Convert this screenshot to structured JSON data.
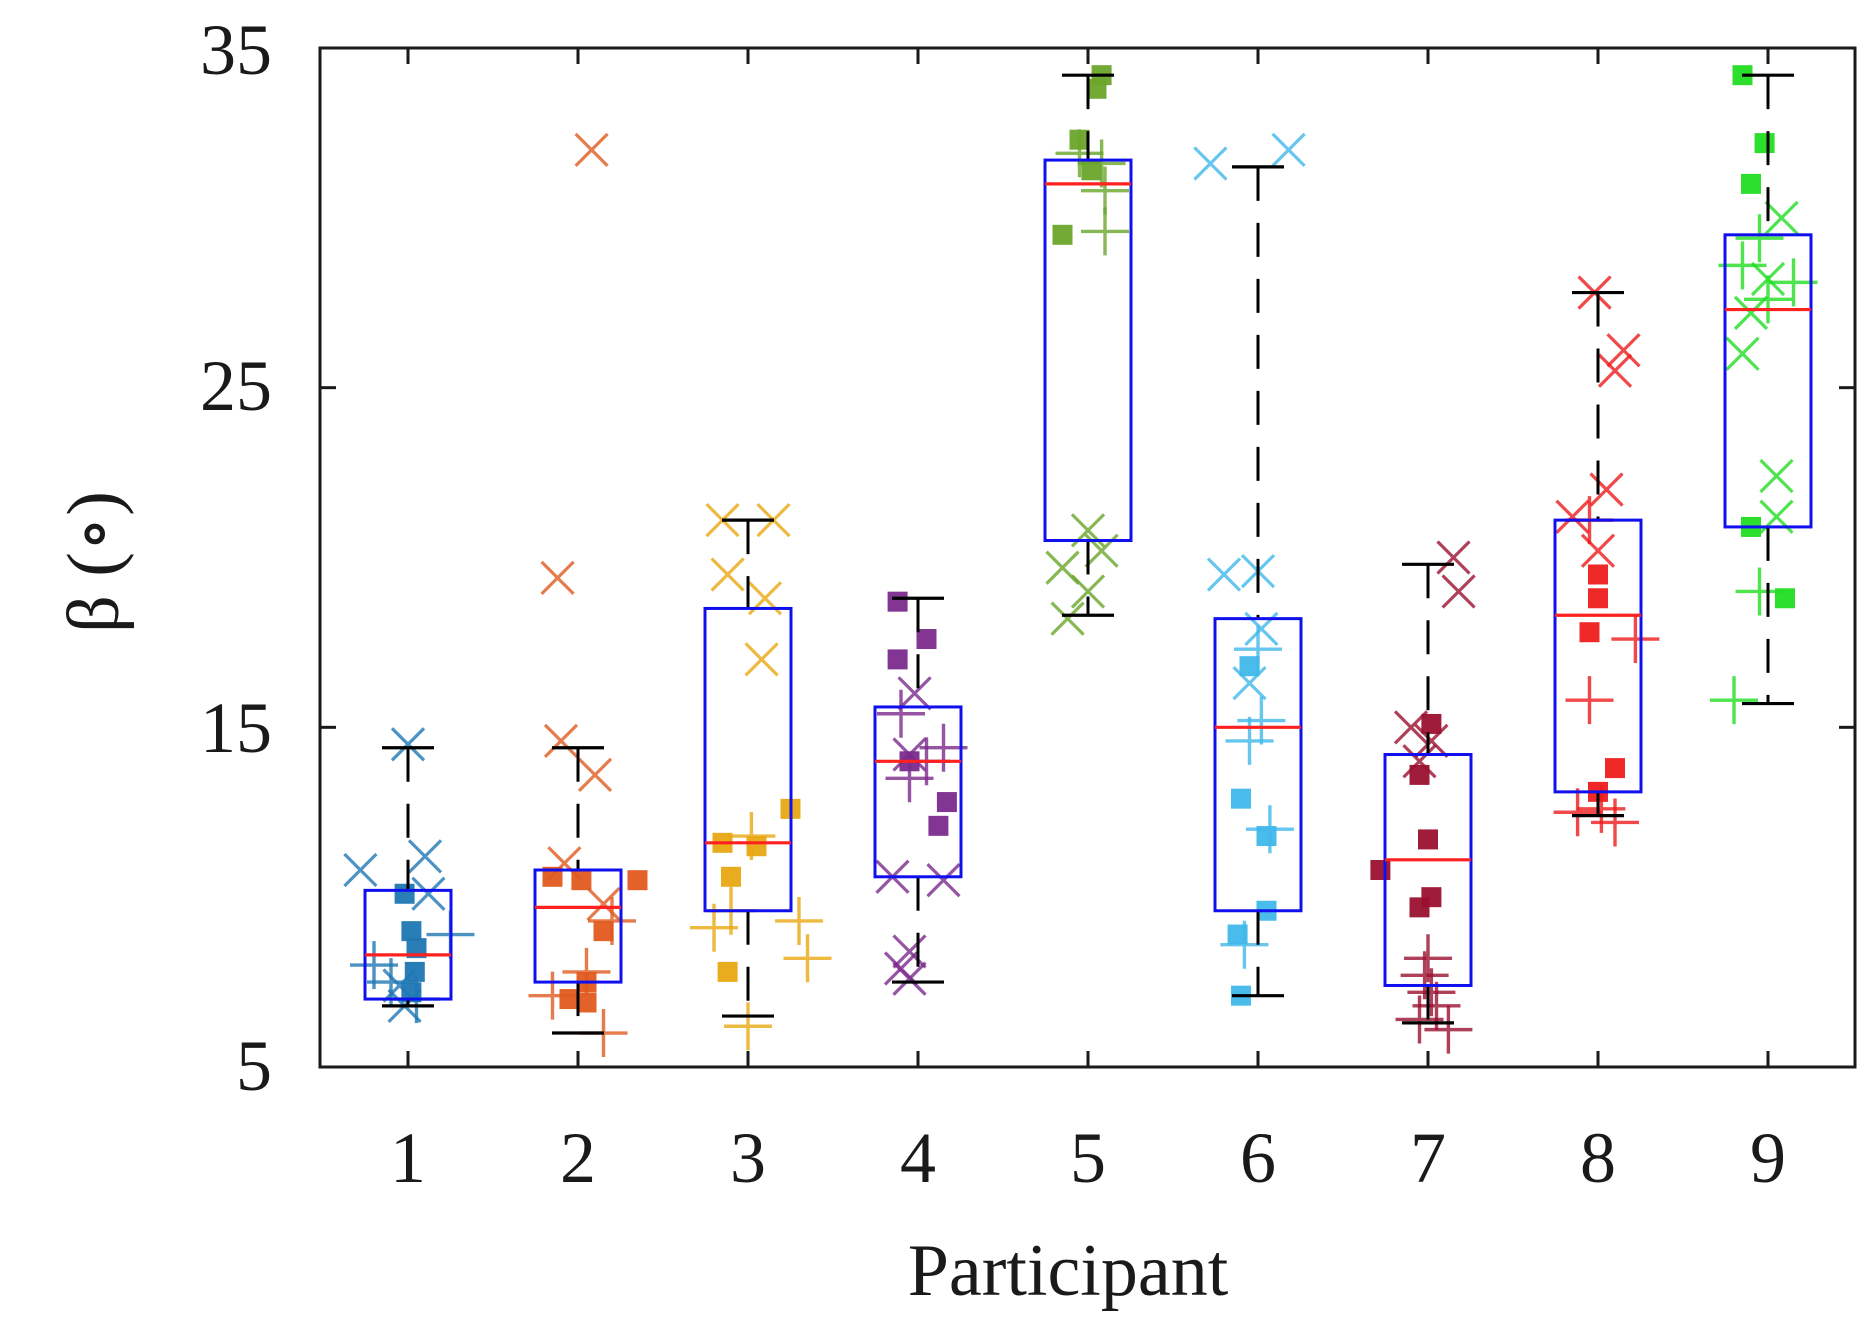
{
  "chart_data": {
    "type": "boxplot",
    "title": "",
    "xlabel": "Participant",
    "ylabel": "β (∘)",
    "ylim": [
      5,
      35
    ],
    "y_ticks": [
      5,
      15,
      25,
      35
    ],
    "categories": [
      "1",
      "2",
      "3",
      "4",
      "5",
      "6",
      "7",
      "8",
      "9"
    ],
    "colors": {
      "box": "#1010ee",
      "median": "#ff2020",
      "whisker": "#000000",
      "axis": "#1a1a1a",
      "participants": [
        "#1f77b4",
        "#e05a1e",
        "#e8a812",
        "#7b2a8c",
        "#6aa52a",
        "#40b8ea",
        "#9a1030",
        "#ee1c1c",
        "#22dd22"
      ]
    },
    "boxes": [
      {
        "participant": "1",
        "q1": 7.0,
        "median": 8.3,
        "q3": 10.2,
        "whisker_low": 6.8,
        "whisker_high": 14.4
      },
      {
        "participant": "2",
        "q1": 7.5,
        "median": 9.7,
        "q3": 10.8,
        "whisker_low": 6.0,
        "whisker_high": 14.4
      },
      {
        "participant": "3",
        "q1": 9.6,
        "median": 11.6,
        "q3": 18.5,
        "whisker_low": 6.5,
        "whisker_high": 21.1
      },
      {
        "participant": "4",
        "q1": 10.6,
        "median": 14.0,
        "q3": 15.6,
        "whisker_low": 7.5,
        "whisker_high": 18.8
      },
      {
        "participant": "5",
        "q1": 20.5,
        "median": 31.0,
        "q3": 31.7,
        "whisker_low": 18.3,
        "whisker_high": 34.2
      },
      {
        "participant": "6",
        "q1": 9.6,
        "median": 15.0,
        "q3": 18.2,
        "whisker_low": 7.1,
        "whisker_high": 31.5
      },
      {
        "participant": "7",
        "q1": 7.4,
        "median": 11.1,
        "q3": 14.2,
        "whisker_low": 6.3,
        "whisker_high": 19.8
      },
      {
        "participant": "8",
        "q1": 13.1,
        "median": 18.3,
        "q3": 21.1,
        "whisker_low": 12.4,
        "whisker_high": 27.8
      },
      {
        "participant": "9",
        "q1": 20.9,
        "median": 27.3,
        "q3": 29.5,
        "whisker_low": 15.7,
        "whisker_high": 34.2
      }
    ],
    "points": [
      {
        "participant": "1",
        "marker": "x",
        "dx": -0.28,
        "y": 10.8
      },
      {
        "participant": "1",
        "marker": "x",
        "dx": 0.0,
        "y": 14.5
      },
      {
        "participant": "1",
        "marker": "x",
        "dx": 0.1,
        "y": 11.2
      },
      {
        "participant": "1",
        "marker": "x",
        "dx": 0.12,
        "y": 10.1
      },
      {
        "participant": "1",
        "marker": "x",
        "dx": -0.05,
        "y": 7.4
      },
      {
        "participant": "1",
        "marker": "x",
        "dx": -0.02,
        "y": 6.8
      },
      {
        "participant": "1",
        "marker": "square",
        "dx": -0.02,
        "y": 10.1
      },
      {
        "participant": "1",
        "marker": "square",
        "dx": 0.02,
        "y": 9.0
      },
      {
        "participant": "1",
        "marker": "square",
        "dx": 0.05,
        "y": 8.5
      },
      {
        "participant": "1",
        "marker": "square",
        "dx": 0.04,
        "y": 7.8
      },
      {
        "participant": "1",
        "marker": "square",
        "dx": 0.02,
        "y": 7.2
      },
      {
        "participant": "1",
        "marker": "plus",
        "dx": 0.25,
        "y": 8.9
      },
      {
        "participant": "1",
        "marker": "plus",
        "dx": -0.2,
        "y": 8.0
      },
      {
        "participant": "1",
        "marker": "plus",
        "dx": -0.1,
        "y": 7.5
      },
      {
        "participant": "1",
        "marker": "plus",
        "dx": 0.05,
        "y": 7.0
      },
      {
        "participant": "2",
        "marker": "x",
        "dx": 0.08,
        "y": 32.0
      },
      {
        "participant": "2",
        "marker": "x",
        "dx": -0.12,
        "y": 19.4
      },
      {
        "participant": "2",
        "marker": "x",
        "dx": -0.1,
        "y": 14.6
      },
      {
        "participant": "2",
        "marker": "x",
        "dx": 0.1,
        "y": 13.6
      },
      {
        "participant": "2",
        "marker": "x",
        "dx": -0.08,
        "y": 11.0
      },
      {
        "participant": "2",
        "marker": "x",
        "dx": 0.15,
        "y": 9.8
      },
      {
        "participant": "2",
        "marker": "square",
        "dx": -0.15,
        "y": 10.6
      },
      {
        "participant": "2",
        "marker": "square",
        "dx": 0.02,
        "y": 10.5
      },
      {
        "participant": "2",
        "marker": "square",
        "dx": 0.35,
        "y": 10.5
      },
      {
        "participant": "2",
        "marker": "square",
        "dx": 0.15,
        "y": 9.0
      },
      {
        "participant": "2",
        "marker": "square",
        "dx": 0.05,
        "y": 7.5
      },
      {
        "participant": "2",
        "marker": "square",
        "dx": -0.05,
        "y": 7.0
      },
      {
        "participant": "2",
        "marker": "square",
        "dx": 0.05,
        "y": 6.9
      },
      {
        "participant": "2",
        "marker": "plus",
        "dx": 0.2,
        "y": 9.3
      },
      {
        "participant": "2",
        "marker": "plus",
        "dx": 0.05,
        "y": 7.8
      },
      {
        "participant": "2",
        "marker": "plus",
        "dx": -0.15,
        "y": 7.1
      },
      {
        "participant": "2",
        "marker": "plus",
        "dx": 0.15,
        "y": 6.0
      },
      {
        "participant": "3",
        "marker": "x",
        "dx": -0.15,
        "y": 21.1
      },
      {
        "participant": "3",
        "marker": "x",
        "dx": 0.15,
        "y": 21.1
      },
      {
        "participant": "3",
        "marker": "x",
        "dx": -0.12,
        "y": 19.5
      },
      {
        "participant": "3",
        "marker": "x",
        "dx": 0.1,
        "y": 18.8
      },
      {
        "participant": "3",
        "marker": "x",
        "dx": 0.08,
        "y": 17.0
      },
      {
        "participant": "3",
        "marker": "square",
        "dx": 0.25,
        "y": 12.6
      },
      {
        "participant": "3",
        "marker": "square",
        "dx": -0.15,
        "y": 11.6
      },
      {
        "participant": "3",
        "marker": "square",
        "dx": 0.05,
        "y": 11.5
      },
      {
        "participant": "3",
        "marker": "square",
        "dx": -0.1,
        "y": 10.6
      },
      {
        "participant": "3",
        "marker": "square",
        "dx": -0.12,
        "y": 7.8
      },
      {
        "participant": "3",
        "marker": "plus",
        "dx": 0.02,
        "y": 11.8
      },
      {
        "participant": "3",
        "marker": "plus",
        "dx": -0.1,
        "y": 9.6
      },
      {
        "participant": "3",
        "marker": "plus",
        "dx": 0.3,
        "y": 9.3
      },
      {
        "participant": "3",
        "marker": "plus",
        "dx": -0.2,
        "y": 9.1
      },
      {
        "participant": "3",
        "marker": "plus",
        "dx": 0.35,
        "y": 8.2
      },
      {
        "participant": "3",
        "marker": "plus",
        "dx": 0.0,
        "y": 6.2
      },
      {
        "participant": "4",
        "marker": "x",
        "dx": -0.15,
        "y": 10.6
      },
      {
        "participant": "4",
        "marker": "x",
        "dx": 0.15,
        "y": 10.5
      },
      {
        "participant": "4",
        "marker": "x",
        "dx": -0.05,
        "y": 8.4
      },
      {
        "participant": "4",
        "marker": "x",
        "dx": -0.05,
        "y": 7.6
      },
      {
        "participant": "4",
        "marker": "x",
        "dx": -0.1,
        "y": 7.9
      },
      {
        "participant": "4",
        "marker": "x",
        "dx": -0.02,
        "y": 16.0
      },
      {
        "participant": "4",
        "marker": "x",
        "dx": -0.05,
        "y": 14.2
      },
      {
        "participant": "4",
        "marker": "square",
        "dx": -0.12,
        "y": 18.7
      },
      {
        "participant": "4",
        "marker": "square",
        "dx": 0.05,
        "y": 17.6
      },
      {
        "participant": "4",
        "marker": "square",
        "dx": -0.12,
        "y": 17.0
      },
      {
        "participant": "4",
        "marker": "square",
        "dx": 0.17,
        "y": 12.8
      },
      {
        "participant": "4",
        "marker": "square",
        "dx": 0.12,
        "y": 12.1
      },
      {
        "participant": "4",
        "marker": "square",
        "dx": -0.05,
        "y": 14.0
      },
      {
        "participant": "4",
        "marker": "plus",
        "dx": -0.1,
        "y": 15.4
      },
      {
        "participant": "4",
        "marker": "plus",
        "dx": 0.15,
        "y": 14.4
      },
      {
        "participant": "4",
        "marker": "plus",
        "dx": 0.05,
        "y": 14.0
      },
      {
        "participant": "4",
        "marker": "plus",
        "dx": -0.05,
        "y": 13.5
      },
      {
        "participant": "5",
        "marker": "x",
        "dx": 0.0,
        "y": 20.8
      },
      {
        "participant": "5",
        "marker": "x",
        "dx": 0.08,
        "y": 20.2
      },
      {
        "participant": "5",
        "marker": "x",
        "dx": -0.15,
        "y": 19.7
      },
      {
        "participant": "5",
        "marker": "x",
        "dx": 0.0,
        "y": 19.0
      },
      {
        "participant": "5",
        "marker": "x",
        "dx": -0.12,
        "y": 18.2
      },
      {
        "participant": "5",
        "marker": "square",
        "dx": 0.08,
        "y": 34.2
      },
      {
        "participant": "5",
        "marker": "square",
        "dx": 0.05,
        "y": 33.8
      },
      {
        "participant": "5",
        "marker": "square",
        "dx": -0.05,
        "y": 32.3
      },
      {
        "participant": "5",
        "marker": "square",
        "dx": 0.02,
        "y": 31.4
      },
      {
        "participant": "5",
        "marker": "square",
        "dx": -0.15,
        "y": 29.5
      },
      {
        "participant": "5",
        "marker": "plus",
        "dx": -0.05,
        "y": 31.9
      },
      {
        "participant": "5",
        "marker": "plus",
        "dx": 0.08,
        "y": 31.6
      },
      {
        "participant": "5",
        "marker": "plus",
        "dx": 0.1,
        "y": 30.8
      },
      {
        "participant": "5",
        "marker": "plus",
        "dx": 0.1,
        "y": 29.6
      },
      {
        "participant": "6",
        "marker": "x",
        "dx": -0.28,
        "y": 31.6
      },
      {
        "participant": "6",
        "marker": "x",
        "dx": 0.18,
        "y": 32.0
      },
      {
        "participant": "6",
        "marker": "x",
        "dx": -0.2,
        "y": 19.5
      },
      {
        "participant": "6",
        "marker": "x",
        "dx": 0.0,
        "y": 19.6
      },
      {
        "participant": "6",
        "marker": "x",
        "dx": 0.02,
        "y": 17.9
      },
      {
        "participant": "6",
        "marker": "x",
        "dx": -0.05,
        "y": 16.3
      },
      {
        "participant": "6",
        "marker": "square",
        "dx": -0.05,
        "y": 16.8
      },
      {
        "participant": "6",
        "marker": "square",
        "dx": -0.1,
        "y": 12.9
      },
      {
        "participant": "6",
        "marker": "square",
        "dx": 0.05,
        "y": 11.8
      },
      {
        "participant": "6",
        "marker": "square",
        "dx": 0.05,
        "y": 9.6
      },
      {
        "participant": "6",
        "marker": "square",
        "dx": -0.12,
        "y": 8.9
      },
      {
        "participant": "6",
        "marker": "square",
        "dx": -0.1,
        "y": 7.1
      },
      {
        "participant": "6",
        "marker": "plus",
        "dx": 0.0,
        "y": 17.3
      },
      {
        "participant": "6",
        "marker": "plus",
        "dx": 0.02,
        "y": 15.2
      },
      {
        "participant": "6",
        "marker": "plus",
        "dx": -0.05,
        "y": 14.6
      },
      {
        "participant": "6",
        "marker": "plus",
        "dx": 0.07,
        "y": 12.0
      },
      {
        "participant": "6",
        "marker": "plus",
        "dx": -0.08,
        "y": 8.6
      },
      {
        "participant": "7",
        "marker": "x",
        "dx": 0.15,
        "y": 20.0
      },
      {
        "participant": "7",
        "marker": "x",
        "dx": 0.18,
        "y": 19.0
      },
      {
        "participant": "7",
        "marker": "x",
        "dx": -0.1,
        "y": 15.0
      },
      {
        "participant": "7",
        "marker": "x",
        "dx": 0.02,
        "y": 14.6
      },
      {
        "participant": "7",
        "marker": "x",
        "dx": -0.05,
        "y": 14.0
      },
      {
        "participant": "7",
        "marker": "square",
        "dx": 0.02,
        "y": 15.1
      },
      {
        "participant": "7",
        "marker": "square",
        "dx": -0.05,
        "y": 13.6
      },
      {
        "participant": "7",
        "marker": "square",
        "dx": 0.0,
        "y": 11.7
      },
      {
        "participant": "7",
        "marker": "square",
        "dx": -0.28,
        "y": 10.8
      },
      {
        "participant": "7",
        "marker": "square",
        "dx": 0.02,
        "y": 10.0
      },
      {
        "participant": "7",
        "marker": "square",
        "dx": -0.05,
        "y": 9.7
      },
      {
        "participant": "7",
        "marker": "plus",
        "dx": 0.0,
        "y": 8.2
      },
      {
        "participant": "7",
        "marker": "plus",
        "dx": -0.02,
        "y": 7.7
      },
      {
        "participant": "7",
        "marker": "plus",
        "dx": 0.02,
        "y": 7.2
      },
      {
        "participant": "7",
        "marker": "plus",
        "dx": 0.05,
        "y": 6.8
      },
      {
        "participant": "7",
        "marker": "plus",
        "dx": -0.05,
        "y": 6.4
      },
      {
        "participant": "7",
        "marker": "plus",
        "dx": 0.12,
        "y": 6.1
      },
      {
        "participant": "8",
        "marker": "x",
        "dx": -0.02,
        "y": 27.8
      },
      {
        "participant": "8",
        "marker": "x",
        "dx": 0.15,
        "y": 26.1
      },
      {
        "participant": "8",
        "marker": "x",
        "dx": 0.1,
        "y": 25.5
      },
      {
        "participant": "8",
        "marker": "x",
        "dx": 0.05,
        "y": 22.0
      },
      {
        "participant": "8",
        "marker": "x",
        "dx": -0.15,
        "y": 21.2
      },
      {
        "participant": "8",
        "marker": "x",
        "dx": 0.0,
        "y": 20.2
      },
      {
        "participant": "8",
        "marker": "square",
        "dx": 0.0,
        "y": 19.5
      },
      {
        "participant": "8",
        "marker": "square",
        "dx": 0.0,
        "y": 18.8
      },
      {
        "participant": "8",
        "marker": "square",
        "dx": -0.05,
        "y": 17.8
      },
      {
        "participant": "8",
        "marker": "square",
        "dx": 0.1,
        "y": 13.8
      },
      {
        "participant": "8",
        "marker": "square",
        "dx": 0.0,
        "y": 13.1
      },
      {
        "participant": "8",
        "marker": "plus",
        "dx": -0.05,
        "y": 21.1
      },
      {
        "participant": "8",
        "marker": "plus",
        "dx": 0.22,
        "y": 17.6
      },
      {
        "participant": "8",
        "marker": "plus",
        "dx": -0.05,
        "y": 15.8
      },
      {
        "participant": "8",
        "marker": "plus",
        "dx": 0.02,
        "y": 12.6
      },
      {
        "participant": "8",
        "marker": "plus",
        "dx": 0.1,
        "y": 12.2
      },
      {
        "participant": "8",
        "marker": "plus",
        "dx": -0.12,
        "y": 12.5
      },
      {
        "participant": "9",
        "marker": "x",
        "dx": 0.08,
        "y": 30.0
      },
      {
        "participant": "9",
        "marker": "x",
        "dx": 0.0,
        "y": 28.2
      },
      {
        "participant": "9",
        "marker": "x",
        "dx": -0.1,
        "y": 27.2
      },
      {
        "participant": "9",
        "marker": "x",
        "dx": -0.15,
        "y": 26.0
      },
      {
        "participant": "9",
        "marker": "x",
        "dx": 0.05,
        "y": 22.4
      },
      {
        "participant": "9",
        "marker": "x",
        "dx": 0.05,
        "y": 21.2
      },
      {
        "participant": "9",
        "marker": "square",
        "dx": -0.15,
        "y": 34.2
      },
      {
        "participant": "9",
        "marker": "square",
        "dx": -0.02,
        "y": 32.2
      },
      {
        "participant": "9",
        "marker": "square",
        "dx": -0.1,
        "y": 31.0
      },
      {
        "participant": "9",
        "marker": "square",
        "dx": -0.1,
        "y": 20.9
      },
      {
        "participant": "9",
        "marker": "square",
        "dx": 0.1,
        "y": 18.8
      },
      {
        "participant": "9",
        "marker": "plus",
        "dx": -0.15,
        "y": 28.6
      },
      {
        "participant": "9",
        "marker": "plus",
        "dx": 0.15,
        "y": 28.1
      },
      {
        "participant": "9",
        "marker": "plus",
        "dx": -0.05,
        "y": 29.4
      },
      {
        "participant": "9",
        "marker": "plus",
        "dx": 0.0,
        "y": 27.6
      },
      {
        "participant": "9",
        "marker": "plus",
        "dx": -0.05,
        "y": 19.0
      },
      {
        "participant": "9",
        "marker": "plus",
        "dx": -0.2,
        "y": 15.8
      }
    ]
  }
}
